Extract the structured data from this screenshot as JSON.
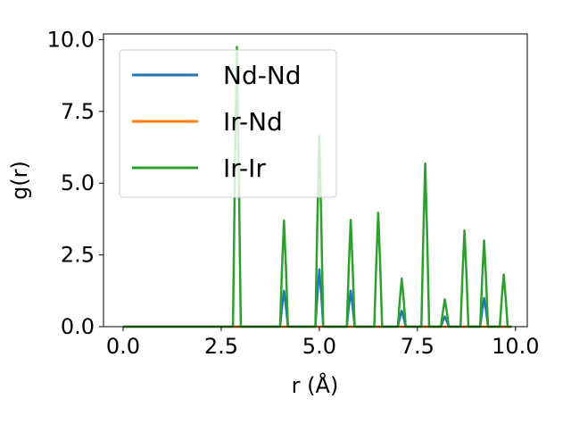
{
  "chart_data": {
    "type": "line",
    "title": "",
    "xlabel": "r (Å)",
    "ylabel": "g(r)",
    "xlim": [
      -0.5,
      10.3
    ],
    "ylim": [
      0,
      10.2
    ],
    "xticks": [
      0.0,
      2.5,
      5.0,
      7.5,
      10.0
    ],
    "xtick_labels": [
      "0.0",
      "2.5",
      "5.0",
      "7.5",
      "10.0"
    ],
    "yticks": [
      0.0,
      2.5,
      5.0,
      7.5,
      10.0
    ],
    "ytick_labels": [
      "0.0",
      "2.5",
      "5.0",
      "7.5",
      "10.0"
    ],
    "grid": false,
    "legend_position": "upper-left",
    "series": [
      {
        "name": "Nd-Nd",
        "color": "#1f77b4",
        "peaks": [
          [
            4.1,
            1.25
          ],
          [
            5.0,
            2.0
          ],
          [
            5.8,
            1.25
          ],
          [
            7.1,
            0.55
          ],
          [
            8.2,
            0.35
          ],
          [
            9.2,
            1.0
          ]
        ]
      },
      {
        "name": "Ir-Nd",
        "color": "#ff7f0e",
        "peaks": []
      },
      {
        "name": "Ir-Ir",
        "color": "#2ca02c",
        "peaks": [
          [
            2.9,
            9.75
          ],
          [
            4.1,
            3.7
          ],
          [
            5.0,
            6.65
          ],
          [
            5.8,
            3.72
          ],
          [
            6.5,
            3.97
          ],
          [
            7.1,
            1.68
          ],
          [
            7.7,
            5.68
          ],
          [
            8.2,
            0.95
          ],
          [
            8.7,
            3.35
          ],
          [
            9.2,
            3.0
          ],
          [
            9.7,
            1.82
          ]
        ]
      }
    ],
    "x_range_data": [
      0.0,
      9.9
    ]
  }
}
